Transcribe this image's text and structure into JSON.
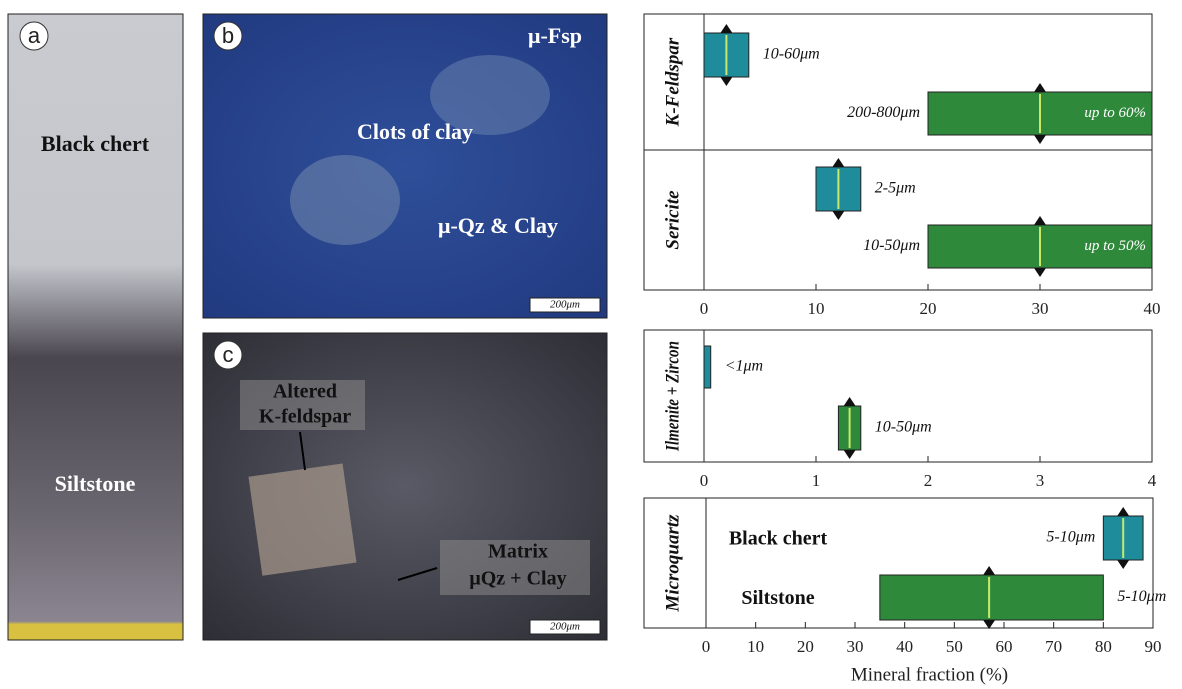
{
  "panels": [
    {
      "label": "a",
      "texts": [
        "Black chert",
        "Siltstone"
      ]
    },
    {
      "label": "b",
      "texts": [
        "μ-Fsp",
        "Clots of clay",
        "μ-Qz & Clay"
      ],
      "scale": "200μm"
    },
    {
      "label": "c",
      "texts": [
        "Altered",
        "K-feldspar",
        "Matrix",
        "μQz + Clay"
      ],
      "scale": "200μm"
    }
  ],
  "chart_data": [
    {
      "type": "range_bar",
      "xlim": [
        0,
        40
      ],
      "xticks": [
        0,
        10,
        20,
        30,
        40
      ],
      "groups": [
        {
          "name": "K-Feldspar",
          "bars": [
            {
              "start": 0,
              "end": 4,
              "mid": 2,
              "color": "#1e8c9a",
              "label": "10-60μm"
            },
            {
              "start": 20,
              "end": 40,
              "mid": 30,
              "color": "#2e8a3a",
              "label": "200-800μm",
              "note": "up to 60%"
            }
          ]
        },
        {
          "name": "Sericite",
          "bars": [
            {
              "start": 10,
              "end": 14,
              "mid": 12,
              "color": "#1e8c9a",
              "label": "2-5μm"
            },
            {
              "start": 20,
              "end": 40,
              "mid": 30,
              "color": "#2e8a3a",
              "label": "10-50μm",
              "note": "up to 50%"
            }
          ]
        }
      ]
    },
    {
      "type": "range_bar",
      "xlim": [
        0,
        4
      ],
      "xticks": [
        0,
        1,
        2,
        3,
        4
      ],
      "groups": [
        {
          "name": "Ilmenite + Zircon",
          "bars": [
            {
              "start": 0,
              "end": 0.06,
              "color": "#1e8c9a",
              "label": "<1μm"
            },
            {
              "start": 1.2,
              "end": 1.4,
              "mid": 1.3,
              "color": "#2e8a3a",
              "label": "10-50μm"
            }
          ]
        }
      ]
    },
    {
      "type": "range_bar",
      "xlim": [
        0,
        90
      ],
      "xticks": [
        0,
        10,
        20,
        30,
        40,
        50,
        60,
        70,
        80,
        90
      ],
      "xlabel": "Mineral fraction (%)",
      "groups": [
        {
          "name": "Microquartz",
          "rows": [
            "Black chert",
            "Siltstone"
          ],
          "bars": [
            {
              "start": 80,
              "end": 88,
              "mid": 84,
              "color": "#1e8c9a",
              "label": "5-10μm"
            },
            {
              "start": 35,
              "end": 80,
              "mid": 57,
              "color": "#2e8a3a",
              "label": "5-10μm"
            }
          ]
        }
      ]
    }
  ]
}
